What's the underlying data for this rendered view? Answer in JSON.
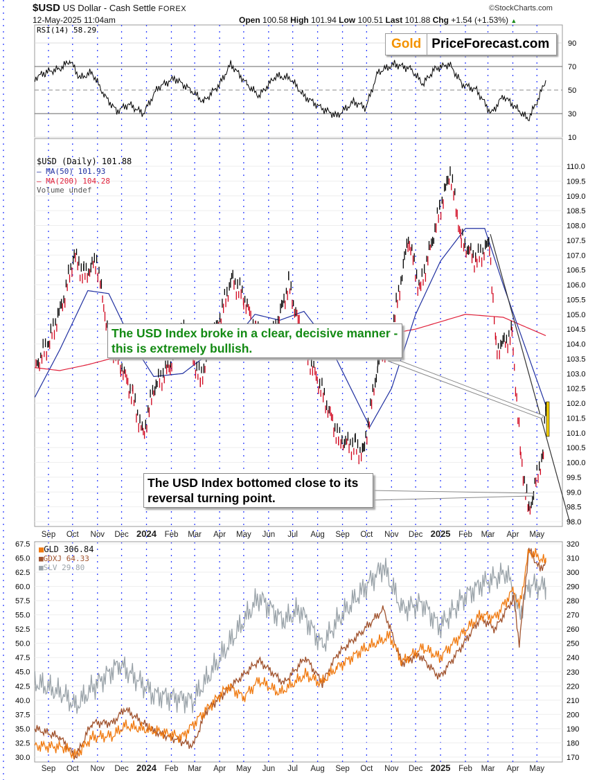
{
  "header": {
    "symbol": "$USD",
    "name": "US Dollar - Cash Settle",
    "exchange": "FOREX",
    "datetime": "12-May-2025 11:04am",
    "credit": "©StockCharts.com",
    "open_label": "Open",
    "open": "100.58",
    "high_label": "High",
    "high": "101.94",
    "low_label": "Low",
    "low": "100.51",
    "last_label": "Last",
    "last": "101.88",
    "chg_label": "Chg",
    "chg": "+1.54 (+1.53%)",
    "chg_icon": "triangle-up-icon",
    "up_color": "#1a8a1a"
  },
  "logo": {
    "part1": "Gold",
    "part2": "PriceForecast.com",
    "color1": "#f39200"
  },
  "annotations": {
    "green_note": "The USD Index broke in a clear, decisive manner - this is extremely bullish.",
    "green_color": "#138a13",
    "black_note": "The USD Index bottomed close to its reversal turning point."
  },
  "x_axis": {
    "months": [
      "Sep",
      "Oct",
      "Nov",
      "Dec",
      "2024",
      "Feb",
      "Mar",
      "Apr",
      "May",
      "Jun",
      "Jul",
      "Aug",
      "Sep",
      "Oct",
      "Nov",
      "Dec",
      "2025",
      "Feb",
      "Mar",
      "Apr",
      "May"
    ],
    "month_dates": [
      "2023-09-01",
      "2023-10-01",
      "2023-11-01",
      "2023-12-01",
      "2024-01-01",
      "2024-02-01",
      "2024-03-01",
      "2024-04-01",
      "2024-05-01",
      "2024-06-01",
      "2024-07-01",
      "2024-08-01",
      "2024-09-01",
      "2024-10-01",
      "2024-11-01",
      "2024-12-01",
      "2025-01-01",
      "2025-02-01",
      "2025-03-01",
      "2025-04-01",
      "2025-05-01"
    ]
  },
  "chart_data": [
    {
      "type": "line",
      "panel": "rsi",
      "legend": "RSI(14) 58.29",
      "ylim": [
        0,
        100
      ],
      "ticks": [
        "90",
        "70",
        "50",
        "30",
        "10"
      ],
      "grid": true,
      "series": [
        {
          "name": "RSI(14)",
          "color": "#000000",
          "points": [
            [
              "2023-08-15",
              60
            ],
            [
              "2023-08-28",
              65
            ],
            [
              "2023-09-15",
              68
            ],
            [
              "2023-09-28",
              75
            ],
            [
              "2023-10-10",
              60
            ],
            [
              "2023-10-25",
              65
            ],
            [
              "2023-11-10",
              45
            ],
            [
              "2023-11-25",
              32
            ],
            [
              "2023-12-10",
              38
            ],
            [
              "2023-12-28",
              30
            ],
            [
              "2024-01-15",
              52
            ],
            [
              "2024-02-05",
              60
            ],
            [
              "2024-02-25",
              50
            ],
            [
              "2024-03-12",
              40
            ],
            [
              "2024-04-01",
              55
            ],
            [
              "2024-04-15",
              72
            ],
            [
              "2024-05-05",
              55
            ],
            [
              "2024-05-20",
              45
            ],
            [
              "2024-06-10",
              62
            ],
            [
              "2024-06-28",
              60
            ],
            [
              "2024-07-15",
              45
            ],
            [
              "2024-08-05",
              35
            ],
            [
              "2024-08-25",
              28
            ],
            [
              "2024-09-15",
              40
            ],
            [
              "2024-09-30",
              35
            ],
            [
              "2024-10-15",
              65
            ],
            [
              "2024-11-05",
              72
            ],
            [
              "2024-11-25",
              68
            ],
            [
              "2024-12-10",
              55
            ],
            [
              "2024-12-25",
              68
            ],
            [
              "2025-01-12",
              72
            ],
            [
              "2025-01-28",
              55
            ],
            [
              "2025-02-15",
              50
            ],
            [
              "2025-03-05",
              30
            ],
            [
              "2025-03-20",
              45
            ],
            [
              "2025-04-05",
              35
            ],
            [
              "2025-04-20",
              25
            ],
            [
              "2025-05-01",
              40
            ],
            [
              "2025-05-12",
              58.29
            ]
          ]
        }
      ]
    },
    {
      "type": "candlestick",
      "panel": "price",
      "legend": "$USD (Daily) 101.88",
      "ylim": [
        98,
        110
      ],
      "grid": true,
      "ticks": [
        "110.0",
        "109.5",
        "109.0",
        "108.5",
        "108.0",
        "107.5",
        "107.0",
        "106.5",
        "106.0",
        "105.5",
        "105.0",
        "104.5",
        "104.0",
        "103.5",
        "103.0",
        "102.5",
        "102.0",
        "101.5",
        "101.0",
        "100.5",
        "100.0",
        "99.5",
        "99.0",
        "98.5",
        "98.0"
      ],
      "series": [
        {
          "name": "$USD",
          "color": "#000000",
          "down_color": "#d0021b",
          "points": [
            [
              "2023-08-15",
              103.2
            ],
            [
              "2023-09-01",
              104.0
            ],
            [
              "2023-09-20",
              105.5
            ],
            [
              "2023-10-03",
              107.0
            ],
            [
              "2023-10-15",
              106.3
            ],
            [
              "2023-10-31",
              106.8
            ],
            [
              "2023-11-15",
              104.2
            ],
            [
              "2023-11-30",
              103.3
            ],
            [
              "2023-12-15",
              102.2
            ],
            [
              "2023-12-28",
              100.9
            ],
            [
              "2024-01-10",
              102.5
            ],
            [
              "2024-01-31",
              103.3
            ],
            [
              "2024-02-15",
              104.5
            ],
            [
              "2024-03-08",
              102.8
            ],
            [
              "2024-03-28",
              104.5
            ],
            [
              "2024-04-16",
              106.2
            ],
            [
              "2024-05-01",
              105.6
            ],
            [
              "2024-05-16",
              104.4
            ],
            [
              "2024-06-04",
              104.0
            ],
            [
              "2024-06-26",
              106.0
            ],
            [
              "2024-07-17",
              103.8
            ],
            [
              "2024-08-05",
              102.5
            ],
            [
              "2024-08-27",
              100.8
            ],
            [
              "2024-09-17",
              100.5
            ],
            [
              "2024-09-27",
              100.3
            ],
            [
              "2024-10-15",
              103.3
            ],
            [
              "2024-11-01",
              104.3
            ],
            [
              "2024-11-22",
              107.6
            ],
            [
              "2024-12-06",
              105.8
            ],
            [
              "2024-12-31",
              108.5
            ],
            [
              "2025-01-13",
              109.8
            ],
            [
              "2025-01-27",
              107.5
            ],
            [
              "2025-02-14",
              106.8
            ],
            [
              "2025-03-03",
              107.4
            ],
            [
              "2025-03-11",
              103.8
            ],
            [
              "2025-03-31",
              104.3
            ],
            [
              "2025-04-11",
              100.2
            ],
            [
              "2025-04-21",
              98.3
            ],
            [
              "2025-05-01",
              99.5
            ],
            [
              "2025-05-09",
              100.34
            ],
            [
              "2025-05-12",
              101.88
            ]
          ]
        },
        {
          "name": "MA(50) 101.93",
          "color": "#1f2fa0",
          "points": [
            [
              "2023-08-15",
              102.2
            ],
            [
              "2023-09-15",
              103.8
            ],
            [
              "2023-10-20",
              105.8
            ],
            [
              "2023-11-15",
              105.7
            ],
            [
              "2023-12-15",
              104.0
            ],
            [
              "2024-01-10",
              102.9
            ],
            [
              "2024-02-15",
              103.0
            ],
            [
              "2024-03-15",
              103.6
            ],
            [
              "2024-04-15",
              104.0
            ],
            [
              "2024-05-15",
              105.0
            ],
            [
              "2024-06-15",
              104.8
            ],
            [
              "2024-07-15",
              105.1
            ],
            [
              "2024-08-15",
              104.0
            ],
            [
              "2024-09-15",
              102.3
            ],
            [
              "2024-10-05",
              101.2
            ],
            [
              "2024-11-01",
              102.5
            ],
            [
              "2024-12-01",
              105.0
            ],
            [
              "2025-01-01",
              106.8
            ],
            [
              "2025-02-01",
              107.9
            ],
            [
              "2025-02-25",
              107.9
            ],
            [
              "2025-03-20",
              106.0
            ],
            [
              "2025-04-15",
              104.0
            ],
            [
              "2025-05-12",
              101.93
            ]
          ]
        },
        {
          "name": "MA(200) 104.28",
          "color": "#e0203a",
          "points": [
            [
              "2023-08-15",
              103.2
            ],
            [
              "2023-09-15",
              103.1
            ],
            [
              "2023-10-20",
              103.3
            ],
            [
              "2023-12-01",
              103.6
            ],
            [
              "2024-02-01",
              103.8
            ],
            [
              "2024-05-01",
              104.2
            ],
            [
              "2024-08-01",
              104.6
            ],
            [
              "2024-10-01",
              104.2
            ],
            [
              "2024-12-01",
              104.5
            ],
            [
              "2025-02-01",
              105.0
            ],
            [
              "2025-03-20",
              104.9
            ],
            [
              "2025-05-12",
              104.28
            ]
          ]
        }
      ],
      "extra_legend": "Volume undef"
    },
    {
      "type": "line",
      "panel": "metals",
      "left_ylim": [
        30,
        67.5
      ],
      "right_ylim": [
        170,
        320
      ],
      "left_ticks": [
        "67.5",
        "65.0",
        "62.5",
        "60.0",
        "57.5",
        "55.0",
        "52.5",
        "50.0",
        "47.5",
        "45.0",
        "42.5",
        "40.0",
        "37.5",
        "35.0",
        "32.5",
        "30.0"
      ],
      "right_ticks": [
        "320",
        "310",
        "300",
        "290",
        "280",
        "270",
        "260",
        "250",
        "240",
        "230",
        "220",
        "210",
        "200",
        "190",
        "180",
        "170"
      ],
      "series": [
        {
          "name": "GLD 306.84",
          "axis": "right",
          "color": "#f07a10",
          "points": [
            [
              "2023-08-15",
              178
            ],
            [
              "2023-09-20",
              177
            ],
            [
              "2023-10-05",
              171
            ],
            [
              "2023-10-25",
              184
            ],
            [
              "2023-11-20",
              185
            ],
            [
              "2023-12-05",
              192
            ],
            [
              "2024-01-15",
              188
            ],
            [
              "2024-02-14",
              184
            ],
            [
              "2024-03-10",
              200
            ],
            [
              "2024-04-12",
              220
            ],
            [
              "2024-05-01",
              212
            ],
            [
              "2024-05-20",
              224
            ],
            [
              "2024-06-15",
              215
            ],
            [
              "2024-07-17",
              228
            ],
            [
              "2024-08-05",
              222
            ],
            [
              "2024-08-25",
              233
            ],
            [
              "2024-09-25",
              245
            ],
            [
              "2024-10-30",
              255
            ],
            [
              "2024-11-14",
              237
            ],
            [
              "2024-12-10",
              247
            ],
            [
              "2024-12-31",
              240
            ],
            [
              "2025-01-30",
              258
            ],
            [
              "2025-02-20",
              270
            ],
            [
              "2025-03-10",
              268
            ],
            [
              "2025-04-02",
              288
            ],
            [
              "2025-04-09",
              275
            ],
            [
              "2025-04-21",
              315
            ],
            [
              "2025-05-05",
              310
            ],
            [
              "2025-05-12",
              306.84
            ]
          ]
        },
        {
          "name": "GDXJ 64.33",
          "axis": "left",
          "color": "#a0522d",
          "points": [
            [
              "2023-08-15",
              35
            ],
            [
              "2023-09-15",
              33.5
            ],
            [
              "2023-10-05",
              30
            ],
            [
              "2023-10-25",
              36
            ],
            [
              "2023-11-20",
              36
            ],
            [
              "2023-12-05",
              38.5
            ],
            [
              "2024-01-10",
              34.5
            ],
            [
              "2024-02-28",
              32
            ],
            [
              "2024-03-15",
              38
            ],
            [
              "2024-04-12",
              42
            ],
            [
              "2024-05-20",
              47
            ],
            [
              "2024-06-20",
              43
            ],
            [
              "2024-07-17",
              47.5
            ],
            [
              "2024-08-07",
              43
            ],
            [
              "2024-08-25",
              48
            ],
            [
              "2024-09-25",
              52
            ],
            [
              "2024-10-22",
              56
            ],
            [
              "2024-11-14",
              46.5
            ],
            [
              "2024-12-05",
              48
            ],
            [
              "2024-12-31",
              44
            ],
            [
              "2025-01-30",
              50
            ],
            [
              "2025-02-20",
              54.5
            ],
            [
              "2025-03-10",
              52.5
            ],
            [
              "2025-04-02",
              58
            ],
            [
              "2025-04-09",
              50
            ],
            [
              "2025-04-21",
              66.5
            ],
            [
              "2025-05-05",
              63
            ],
            [
              "2025-05-12",
              64.33
            ]
          ]
        },
        {
          "name": "SLV 29.80",
          "axis": "overlay",
          "color": "#9aa3a9",
          "points": [
            [
              "2023-08-15",
              22
            ],
            [
              "2023-09-20",
              21
            ],
            [
              "2023-10-05",
              20
            ],
            [
              "2023-10-25",
              21.5
            ],
            [
              "2023-11-28",
              23.5
            ],
            [
              "2024-01-10",
              21
            ],
            [
              "2024-02-28",
              20.5
            ],
            [
              "2024-03-28",
              23.5
            ],
            [
              "2024-05-20",
              29
            ],
            [
              "2024-06-20",
              27
            ],
            [
              "2024-07-10",
              28
            ],
            [
              "2024-08-07",
              25
            ],
            [
              "2024-08-25",
              27
            ],
            [
              "2024-09-25",
              29.5
            ],
            [
              "2024-10-22",
              31.5
            ],
            [
              "2024-11-14",
              28
            ],
            [
              "2024-12-10",
              28.5
            ],
            [
              "2024-12-31",
              26.5
            ],
            [
              "2025-01-30",
              29
            ],
            [
              "2025-02-20",
              30
            ],
            [
              "2025-03-25",
              31
            ],
            [
              "2025-04-09",
              27.5
            ],
            [
              "2025-04-21",
              30
            ],
            [
              "2025-05-12",
              29.8
            ]
          ]
        }
      ]
    }
  ]
}
